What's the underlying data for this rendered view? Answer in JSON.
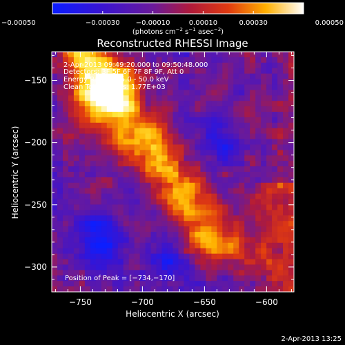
{
  "chart_data": {
    "type": "heatmap",
    "title": "Reconstructed RHESSI Image",
    "xlabel": "Heliocentric X (arcsec)",
    "ylabel": "Heliocentric Y (arcsec)",
    "xlim": [
      -773,
      -578
    ],
    "ylim": [
      -320,
      -127
    ],
    "xticks": [
      -750,
      -700,
      -650,
      -600
    ],
    "xtick_labels": [
      "−750",
      "−700",
      "−650",
      "−600"
    ],
    "yticks": [
      -150,
      -200,
      -250,
      -300
    ],
    "ytick_labels": [
      "−150",
      "−200",
      "−250",
      "−300"
    ],
    "colorbar": {
      "range": [
        -0.0005,
        0.0005
      ],
      "ticks": [
        -0.0005,
        -0.0003,
        -0.0001,
        0.0001,
        0.0003,
        0.0005
      ],
      "tick_labels": [
        "−0.00050",
        "−0.00030",
        "−0.00010",
        "0.00010",
        "0.00030",
        "0.00050"
      ],
      "unit_prefix": "(photons cm",
      "unit_exp1": "−2",
      "unit_mid": " s",
      "unit_exp2": "−1",
      "unit_mid2": " asec",
      "unit_exp3": "−2",
      "unit_suffix": ")",
      "colors": [
        "#0a1cff",
        "#5a0fb0",
        "#8a1a8a",
        "#d41a1a",
        "#ff7a00",
        "#ffd800",
        "#ffffff"
      ]
    },
    "peak": {
      "x": -734,
      "y": -170
    },
    "grid": false
  },
  "annotations": {
    "time_range": "2-Apr-2013 09:49:20.000 to 09:50:48.000",
    "detectors": "Detectors: 3F 5F 6F 7F 8F 9F, Att 0",
    "energy": "Energy Range: 25.0 - 50.0 keV",
    "clean": "Clean      Total counts: 1.77E+03",
    "peak_label": "Position of Peak = [−734,−170]"
  },
  "footer": {
    "timestamp": "2-Apr-2013 13:25"
  }
}
